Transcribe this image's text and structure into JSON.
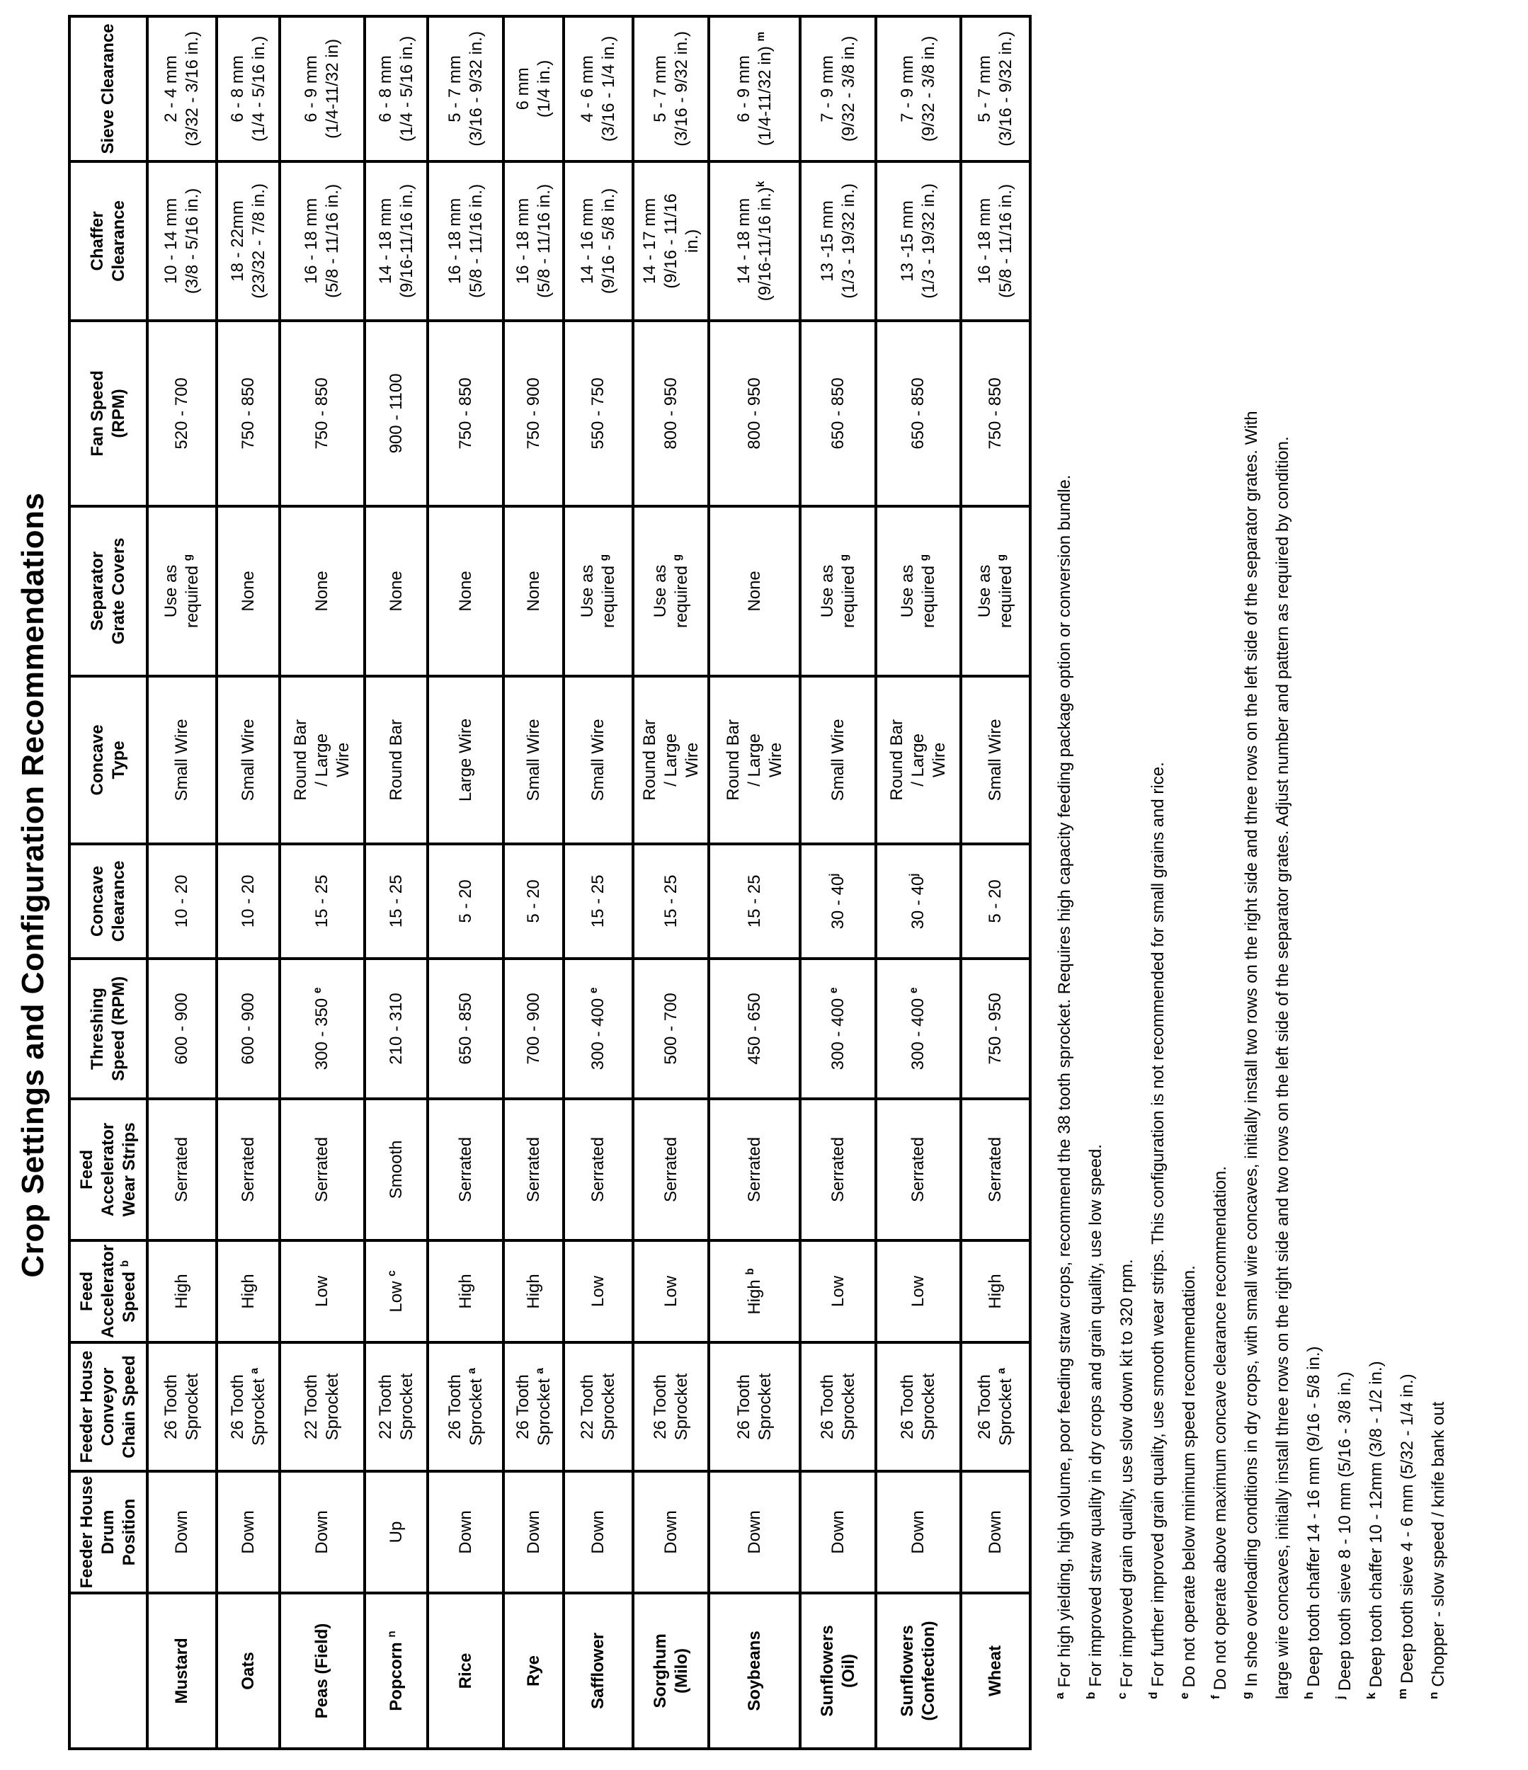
{
  "page_title": "Crop Settings and Configuration Recommendations",
  "colors": {
    "ink": "#000000",
    "paper": "#ffffff"
  },
  "table": {
    "columns": [
      {
        "label": ""
      },
      {
        "label": "Feeder House\nDrum\nPosition"
      },
      {
        "label": "Feeder House\nConveyor\nChain Speed"
      },
      {
        "label": "Feed\nAccelerator\nSpeed ^b"
      },
      {
        "label": "Feed\nAccelerator\nWear Strips"
      },
      {
        "label": "Threshing\nSpeed (RPM)"
      },
      {
        "label": "Concave\nClearance"
      },
      {
        "label": "Concave\nType"
      },
      {
        "label": "Separator\nGrate Covers"
      },
      {
        "label": "Fan Speed\n(RPM)"
      },
      {
        "label": "Chaffer\nClearance"
      },
      {
        "label": "Sieve Clearance"
      }
    ],
    "rows": [
      {
        "crop": "Mustard",
        "values": [
          "Down",
          "26 Tooth\nSprocket",
          "High",
          "Serrated",
          "600 - 900",
          "10 - 20",
          "Small Wire",
          "Use as\nrequired ^g",
          "520 - 700",
          "10 - 14 mm\n(3/8 - 5/16 in.)",
          "2 - 4 mm\n(3/32 - 3/16 in.)"
        ]
      },
      {
        "crop": "Oats",
        "values": [
          "Down",
          "26 Tooth\nSprocket ^a",
          "High",
          "Serrated",
          "600 - 900",
          "10 - 20",
          "Small Wire",
          "None",
          "750 - 850",
          "18 - 22mm\n(23/32 - 7/8 in.)",
          "6 - 8 mm\n(1/4 - 5/16 in.)"
        ]
      },
      {
        "crop": "Peas (Field)",
        "values": [
          "Down",
          "22 Tooth\nSprocket",
          "Low",
          "Serrated",
          "300 - 350 ^e",
          "15 - 25",
          "Round Bar\n/ Large\nWire",
          "None",
          "750 - 850",
          "16 - 18 mm\n(5/8 - 11/16 in.)",
          "6 - 9 mm\n(1/4-11/32 in)"
        ]
      },
      {
        "crop": "Popcorn ^n",
        "values": [
          "Up",
          "22 Tooth\nSprocket",
          "Low ^c",
          "Smooth",
          "210 - 310",
          "15 - 25",
          "Round Bar",
          "None",
          "900 - 1100",
          "14 - 18 mm\n(9/16-11/16 in.)",
          "6 - 8 mm\n(1/4 - 5/16 in.)"
        ]
      },
      {
        "crop": "Rice",
        "values": [
          "Down",
          "26 Tooth\nSprocket ^a",
          "High",
          "Serrated",
          "650 - 850",
          "5 - 20",
          "Large Wire",
          "None",
          "750 - 850",
          "16 - 18 mm\n(5/8 - 11/16 in.)",
          "5 - 7 mm\n(3/16 - 9/32 in.)"
        ]
      },
      {
        "crop": "Rye",
        "values": [
          "Down",
          "26 Tooth\nSprocket ^a",
          "High",
          "Serrated",
          "700 - 900",
          "5 - 20",
          "Small Wire",
          "None",
          "750 - 900",
          "16 - 18 mm\n(5/8 - 11/16 in.)",
          "6 mm\n(1/4 in.)"
        ]
      },
      {
        "crop": "Safflower",
        "values": [
          "Down",
          "22 Tooth\nSprocket",
          "Low",
          "Serrated",
          "300 - 400 ^e",
          "15 - 25",
          "Small Wire",
          "Use as\nrequired ^g",
          "550 - 750",
          "14 - 16 mm\n(9/16 - 5/8 in.)",
          "4 - 6 mm\n(3/16 - 1/4 in.)"
        ]
      },
      {
        "crop": "Sorghum\n(Milo)",
        "values": [
          "Down",
          "26 Tooth\nSprocket",
          "Low",
          "Serrated",
          "500 - 700",
          "15 - 25",
          "Round Bar\n/ Large\nWire",
          "Use as\nrequired ^g",
          "800 - 950",
          "14 - 17 mm\n(9/16 - 11/16\nin.)",
          "5 - 7 mm\n(3/16 - 9/32 in.)"
        ]
      },
      {
        "crop": "Soybeans",
        "values": [
          "Down",
          "26 Tooth\nSprocket",
          "High ^b",
          "Serrated",
          "450 - 650",
          "15 - 25",
          "Round Bar\n/ Large\nWire",
          "None",
          "800 - 950",
          "14 - 18 mm\n(9/16-11/16 in.)^k",
          "6 - 9 mm\n(1/4-11/32 in) ^m"
        ]
      },
      {
        "crop": "Sunflowers\n(Oil)",
        "values": [
          "Down",
          "26 Tooth\nSprocket",
          "Low",
          "Serrated",
          "300 - 400 ^e",
          "30 - 40^j",
          "Small Wire",
          "Use as\nrequired ^g",
          "650 - 850",
          "13 -15 mm\n(1/3 - 19/32 in.)",
          "7 - 9 mm\n(9/32 - 3/8 in.)"
        ]
      },
      {
        "crop": "Sunflowers\n(Confection)",
        "values": [
          "Down",
          "26 Tooth\nSprocket",
          "Low",
          "Serrated",
          "300 - 400 ^e",
          "30 - 40^j",
          "Round Bar\n/ Large\nWire",
          "Use as\nrequired ^g",
          "650 - 850",
          "13 -15 mm\n(1/3 - 19/32 in.)",
          "7 - 9 mm\n(9/32 - 3/8 in.)"
        ]
      },
      {
        "crop": "Wheat",
        "values": [
          "Down",
          "26 Tooth\nSprocket ^a",
          "High",
          "Serrated",
          "750 - 950",
          "5 - 20",
          "Small Wire",
          "Use as\nrequired ^g",
          "750 - 850",
          "16 - 18 mm\n(5/8 - 11/16 in.)",
          "5 - 7 mm\n(3/16 - 9/32 in.)"
        ]
      }
    ]
  },
  "footnotes": [
    {
      "mark": "a",
      "text": "For high yielding, high volume, poor feeding straw crops, recommend the 38 tooth sprocket.  Requires high capacity feeding package option or conversion bundle."
    },
    {
      "mark": "b",
      "text": "For improved straw quality in dry crops and grain quality, use low speed."
    },
    {
      "mark": "c",
      "text": "For improved grain quality, use slow down kit to 320 rpm."
    },
    {
      "mark": "d",
      "text": "For further improved grain quality, use smooth wear strips.  This configuration is not recommended for small grains and rice."
    },
    {
      "mark": "e",
      "text": "Do not operate below minimum speed recommendation."
    },
    {
      "mark": "f",
      "text": "Do not operate above maximum concave clearance recommendation."
    },
    {
      "mark": "g",
      "text": "In shoe overloading conditions in dry crops, with small wire concaves, initially install two rows on the right side and three rows on the left side of the separator grates. With"
    },
    {
      "mark": "",
      "text": "large wire concaves, initially install three rows on the right side and two rows on the left side of the separator grates.  Adjust number and pattern as required by condition."
    },
    {
      "mark": "h",
      "text": "Deep tooth chaffer 14 - 16 mm (9/16 - 5/8 in.)"
    },
    {
      "mark": "j",
      "text": "Deep tooth sieve 8 - 10 mm (5/16 - 3/8 in.)"
    },
    {
      "mark": "k",
      "text": "Deep tooth chaffer 10 - 12mm (3/8 - 1/2 in.)"
    },
    {
      "mark": "m",
      "text": "Deep tooth sieve 4 - 6 mm (5/32 - 1/4 in.)"
    },
    {
      "mark": "n",
      "text": "Chopper - slow speed / knife bank out"
    }
  ]
}
